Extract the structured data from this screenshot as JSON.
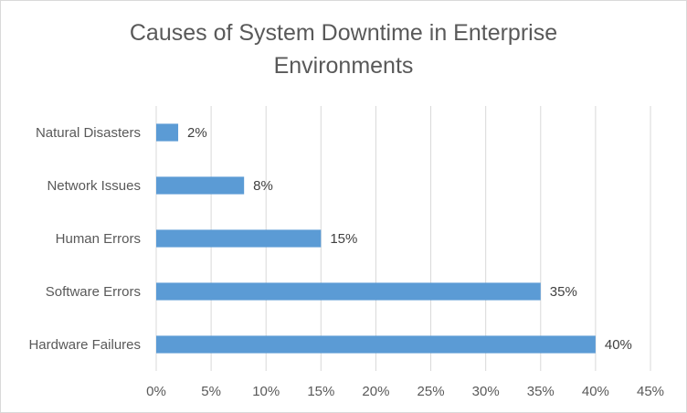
{
  "chart_data": {
    "type": "bar",
    "orientation": "horizontal",
    "title": "Causes of System Downtime in Enterprise Environments",
    "categories": [
      "Natural Disasters",
      "Network Issues",
      "Human Errors",
      "Software Errors",
      "Hardware Failures"
    ],
    "values": [
      2,
      8,
      15,
      35,
      40
    ],
    "value_labels": [
      "2%",
      "8%",
      "15%",
      "35%",
      "40%"
    ],
    "xlim": [
      0,
      45
    ],
    "xticks": [
      0,
      5,
      10,
      15,
      20,
      25,
      30,
      35,
      40,
      45
    ],
    "xtick_labels": [
      "0%",
      "5%",
      "10%",
      "15%",
      "20%",
      "25%",
      "30%",
      "35%",
      "40%",
      "45%"
    ],
    "xlabel": "",
    "ylabel": "",
    "grid": "vertical",
    "legend": "none",
    "bar_color": "#5b9bd5",
    "gridline_color": "#d9d9d9"
  }
}
